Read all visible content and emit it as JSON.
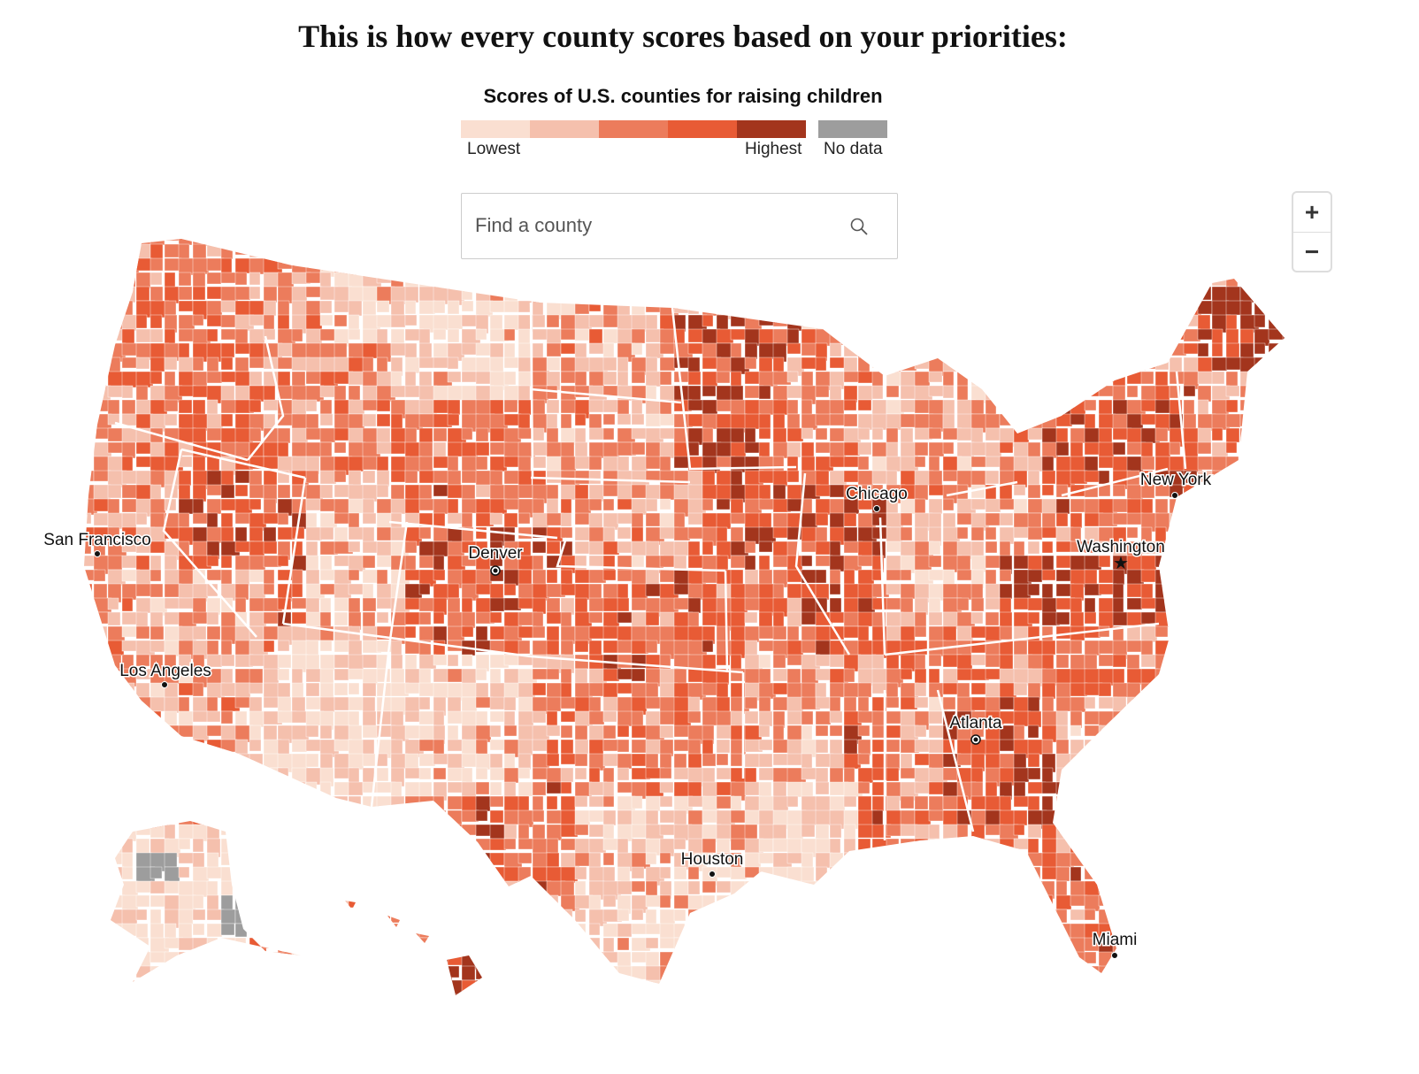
{
  "title": "This is how every county scores based on your priorities:",
  "legend": {
    "title": "Scores of U.S. counties for raising children",
    "colors": [
      "#fadfd1",
      "#f5c0ad",
      "#ec7c5c",
      "#e85b35",
      "#a3351d"
    ],
    "low_label": "Lowest",
    "high_label": "Highest",
    "nodata_label": "No data",
    "nodata_color": "#9d9d9d"
  },
  "search": {
    "placeholder": "Find a county",
    "icon": "search-icon"
  },
  "zoom_controls": {
    "zoom_in": "+",
    "zoom_out": "−"
  },
  "cities": [
    {
      "name": "San Francisco",
      "marker": "dot"
    },
    {
      "name": "Los Angeles",
      "marker": "dot"
    },
    {
      "name": "Denver",
      "marker": "ring"
    },
    {
      "name": "Chicago",
      "marker": "dot"
    },
    {
      "name": "New York",
      "marker": "dot"
    },
    {
      "name": "Washington",
      "marker": "star"
    },
    {
      "name": "Atlanta",
      "marker": "ring"
    },
    {
      "name": "Houston",
      "marker": "dot"
    },
    {
      "name": "Miami",
      "marker": "dot"
    }
  ]
}
